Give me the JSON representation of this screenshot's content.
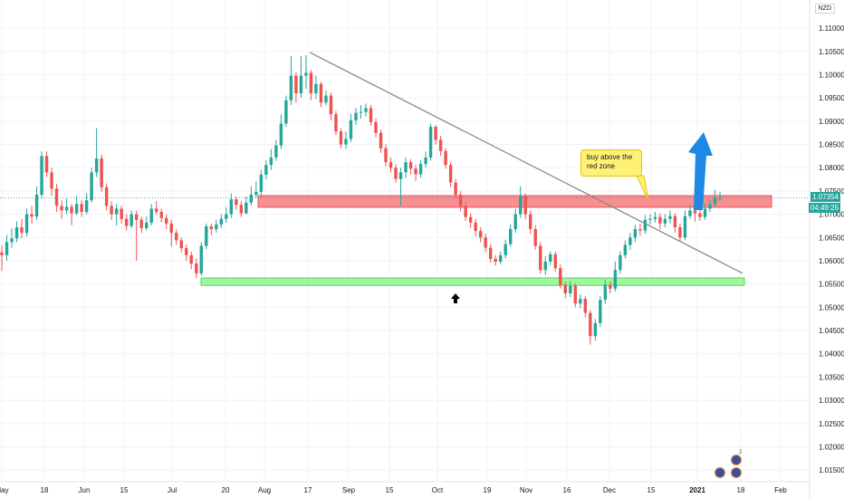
{
  "currency_label": "NZD",
  "last_price_label": "1.07354",
  "countdown_label": "04:49:25",
  "callout_text": "buy above the red zone",
  "event_count": "2",
  "colors": {
    "up": "#26a69a",
    "down": "#ef5350",
    "red_zone_fill": "#f77c80",
    "red_zone_stroke": "#e53935",
    "green_zone_fill": "#8ef78e",
    "green_zone_stroke": "#43c443",
    "trendline": "#8a8a8a",
    "arrow_blue": "#1e88e5",
    "last_price_bg": "#26a69a",
    "grid": "#f0f3fa"
  },
  "chart_data": {
    "type": "candlestick",
    "interval": "1D",
    "symbol_quote": "NZD",
    "y_ticks": [
      "1.11000",
      "1.10500",
      "1.10000",
      "1.09500",
      "1.09000",
      "1.08500",
      "1.08000",
      "1.07500",
      "1.07000",
      "1.06500",
      "1.06000",
      "1.05500",
      "1.05000",
      "1.04500",
      "1.04000",
      "1.03500",
      "1.03000",
      "1.02500",
      "1.02000",
      "1.01500"
    ],
    "y_range": [
      1.0125,
      1.1145
    ],
    "x_ticks": [
      "May",
      "18",
      "Jun",
      "15",
      "Jul",
      "20",
      "Aug",
      "17",
      "Sep",
      "15",
      "Oct",
      "19",
      "Nov",
      "16",
      "Dec",
      "15",
      "2021",
      "18",
      "Feb"
    ],
    "last_price": 1.07354,
    "zones": [
      {
        "name": "red zone",
        "from": 1.0715,
        "to": 1.074
      },
      {
        "name": "green zone",
        "from": 1.0547,
        "to": 1.0563
      }
    ],
    "trendline": {
      "start": 1.1048,
      "end": 1.0573
    },
    "annotations": [
      "buy above the red zone"
    ],
    "candles": [
      [
        1.0618,
        1.0612,
        1.0632,
        1.0578
      ],
      [
        1.0612,
        1.064,
        1.0655,
        1.06
      ],
      [
        1.064,
        1.0648,
        1.067,
        1.0628
      ],
      [
        1.0648,
        1.0672,
        1.0685,
        1.064
      ],
      [
        1.0672,
        1.066,
        1.069,
        1.0648
      ],
      [
        1.066,
        1.07,
        1.0712,
        1.0652
      ],
      [
        1.07,
        1.0695,
        1.0718,
        1.068
      ],
      [
        1.0695,
        1.0742,
        1.076,
        1.0688
      ],
      [
        1.0742,
        1.0825,
        1.0835,
        1.0735
      ],
      [
        1.0825,
        1.079,
        1.0835,
        1.078
      ],
      [
        1.079,
        1.0755,
        1.08,
        1.074
      ],
      [
        1.0755,
        1.0718,
        1.0765,
        1.0705
      ],
      [
        1.0718,
        1.0708,
        1.073,
        1.069
      ],
      [
        1.0708,
        1.0716,
        1.0734,
        1.07
      ],
      [
        1.0716,
        1.0702,
        1.0722,
        1.0676
      ],
      [
        1.0702,
        1.0722,
        1.074,
        1.0698
      ],
      [
        1.0722,
        1.0705,
        1.073,
        1.0694
      ],
      [
        1.0705,
        1.073,
        1.0745,
        1.07
      ],
      [
        1.073,
        1.079,
        1.08,
        1.0725
      ],
      [
        1.079,
        1.082,
        1.0885,
        1.078
      ],
      [
        1.082,
        1.0758,
        1.0828,
        1.0748
      ],
      [
        1.0758,
        1.0718,
        1.0766,
        1.0708
      ],
      [
        1.0718,
        1.07,
        1.0728,
        1.0688
      ],
      [
        1.07,
        1.0712,
        1.0722,
        1.0676
      ],
      [
        1.0712,
        1.069,
        1.0718,
        1.068
      ],
      [
        1.069,
        1.0675,
        1.07,
        1.0665
      ],
      [
        1.0675,
        1.07,
        1.0708,
        1.067
      ],
      [
        1.07,
        1.0688,
        1.0708,
        1.06
      ],
      [
        1.0688,
        1.067,
        1.0695,
        1.066
      ],
      [
        1.067,
        1.0682,
        1.0695,
        1.0665
      ],
      [
        1.0682,
        1.0712,
        1.0722,
        1.0676
      ],
      [
        1.0712,
        1.0705,
        1.0728,
        1.0698
      ],
      [
        1.0705,
        1.0692,
        1.0712,
        1.0682
      ],
      [
        1.0692,
        1.068,
        1.07,
        1.0668
      ],
      [
        1.068,
        1.066,
        1.0688,
        1.063
      ],
      [
        1.066,
        1.0644,
        1.0668,
        1.0634
      ],
      [
        1.0644,
        1.0627,
        1.065,
        1.0618
      ],
      [
        1.0627,
        1.0612,
        1.0635,
        1.06
      ],
      [
        1.0612,
        1.0594,
        1.062,
        1.0582
      ],
      [
        1.0594,
        1.0573,
        1.0605,
        1.0563
      ],
      [
        1.0573,
        1.0632,
        1.064,
        1.0568
      ],
      [
        1.0632,
        1.0674,
        1.068,
        1.0625
      ],
      [
        1.0674,
        1.0668,
        1.068,
        1.0655
      ],
      [
        1.0668,
        1.0678,
        1.0688,
        1.066
      ],
      [
        1.0678,
        1.069,
        1.07,
        1.067
      ],
      [
        1.069,
        1.07,
        1.0715,
        1.0682
      ],
      [
        1.07,
        1.0732,
        1.0745,
        1.0692
      ],
      [
        1.0732,
        1.072,
        1.0738,
        1.071
      ],
      [
        1.072,
        1.0702,
        1.0728,
        1.0694
      ],
      [
        1.0702,
        1.0725,
        1.0738,
        1.07
      ],
      [
        1.0725,
        1.0742,
        1.076,
        1.0718
      ],
      [
        1.0742,
        1.0748,
        1.077,
        1.0735
      ],
      [
        1.0748,
        1.0785,
        1.0795,
        1.074
      ],
      [
        1.0785,
        1.0806,
        1.0816,
        1.0775
      ],
      [
        1.0806,
        1.0822,
        1.084,
        1.0795
      ],
      [
        1.0822,
        1.0848,
        1.086,
        1.0815
      ],
      [
        1.0848,
        1.0895,
        1.0915,
        1.084
      ],
      [
        1.0895,
        1.0945,
        1.0955,
        1.0888
      ],
      [
        1.0945,
        1.0998,
        1.104,
        1.0935
      ],
      [
        1.0998,
        1.096,
        1.1005,
        1.094
      ],
      [
        1.096,
        1.0998,
        1.104,
        1.095
      ],
      [
        1.0998,
        1.1004,
        1.1042,
        1.097
      ],
      [
        1.1004,
        1.096,
        1.101,
        1.0945
      ],
      [
        1.096,
        1.098,
        1.0998,
        1.0948
      ],
      [
        1.098,
        1.094,
        1.0985,
        1.093
      ],
      [
        1.094,
        1.0955,
        1.0966,
        1.0935
      ],
      [
        1.0955,
        1.0915,
        1.0962,
        1.0902
      ],
      [
        1.0915,
        1.0878,
        1.0922,
        1.087
      ],
      [
        1.0878,
        1.085,
        1.0885,
        1.0842
      ],
      [
        1.085,
        1.0862,
        1.0878,
        1.084
      ],
      [
        1.0862,
        1.0902,
        1.0916,
        1.0855
      ],
      [
        1.0902,
        1.0918,
        1.0928,
        1.0892
      ],
      [
        1.0918,
        1.092,
        1.0935,
        1.0905
      ],
      [
        1.092,
        1.0928,
        1.0938,
        1.091
      ],
      [
        1.0928,
        1.0898,
        1.0935,
        1.089
      ],
      [
        1.0898,
        1.0875,
        1.0906,
        1.0865
      ],
      [
        1.0875,
        1.0842,
        1.0882,
        1.0832
      ],
      [
        1.0842,
        1.0812,
        1.085,
        1.0802
      ],
      [
        1.0812,
        1.08,
        1.0822,
        1.079
      ],
      [
        1.08,
        1.0776,
        1.0808,
        1.0768
      ],
      [
        1.0776,
        1.079,
        1.08,
        1.0718
      ],
      [
        1.079,
        1.0812,
        1.0822,
        1.0778
      ],
      [
        1.0812,
        1.0798,
        1.0818,
        1.0786
      ],
      [
        1.0798,
        1.0786,
        1.0806,
        1.0772
      ],
      [
        1.0786,
        1.0808,
        1.0816,
        1.0778
      ],
      [
        1.0808,
        1.0822,
        1.0835,
        1.08
      ],
      [
        1.0822,
        1.0888,
        1.0895,
        1.0815
      ],
      [
        1.0888,
        1.086,
        1.0892,
        1.085
      ],
      [
        1.086,
        1.0836,
        1.0868,
        1.0826
      ],
      [
        1.0836,
        1.0806,
        1.0842,
        1.0798
      ],
      [
        1.0806,
        1.0768,
        1.0812,
        1.0758
      ],
      [
        1.0768,
        1.0742,
        1.0776,
        1.0734
      ],
      [
        1.0742,
        1.0718,
        1.075,
        1.0706
      ],
      [
        1.0718,
        1.0694,
        1.0726,
        1.0686
      ],
      [
        1.0694,
        1.0682,
        1.0702,
        1.067
      ],
      [
        1.0682,
        1.0664,
        1.069,
        1.0652
      ],
      [
        1.0664,
        1.065,
        1.0672,
        1.064
      ],
      [
        1.065,
        1.0628,
        1.0658,
        1.0618
      ],
      [
        1.0628,
        1.0604,
        1.0636,
        1.0596
      ],
      [
        1.0604,
        1.0598,
        1.0612,
        1.059
      ],
      [
        1.0598,
        1.0612,
        1.062,
        1.0592
      ],
      [
        1.0612,
        1.0636,
        1.0645,
        1.0605
      ],
      [
        1.0636,
        1.0668,
        1.0678,
        1.063
      ],
      [
        1.0668,
        1.07,
        1.0712,
        1.066
      ],
      [
        1.07,
        1.0738,
        1.076,
        1.0692
      ],
      [
        1.0738,
        1.07,
        1.0745,
        1.069
      ],
      [
        1.07,
        1.0668,
        1.0708,
        1.0658
      ],
      [
        1.0668,
        1.0632,
        1.0676,
        1.0624
      ],
      [
        1.0632,
        1.058,
        1.064,
        1.0572
      ],
      [
        1.058,
        1.0598,
        1.061,
        1.057
      ],
      [
        1.0598,
        1.0614,
        1.062,
        1.059
      ],
      [
        1.0614,
        1.0584,
        1.062,
        1.0576
      ],
      [
        1.0584,
        1.0548,
        1.0592,
        1.054
      ],
      [
        1.0548,
        1.053,
        1.0555,
        1.052
      ],
      [
        1.053,
        1.0546,
        1.0556,
        1.0522
      ],
      [
        1.0546,
        1.0508,
        1.0552,
        1.05
      ],
      [
        1.0508,
        1.0518,
        1.0528,
        1.0498
      ],
      [
        1.0518,
        1.0488,
        1.0524,
        1.0478
      ],
      [
        1.0488,
        1.0438,
        1.0494,
        1.042
      ],
      [
        1.0438,
        1.0466,
        1.0475,
        1.0428
      ],
      [
        1.0466,
        1.0516,
        1.0524,
        1.0458
      ],
      [
        1.0516,
        1.0548,
        1.056,
        1.0508
      ],
      [
        1.0548,
        1.054,
        1.0556,
        1.053
      ],
      [
        1.054,
        1.058,
        1.0598,
        1.0534
      ],
      [
        1.058,
        1.0612,
        1.062,
        1.0572
      ],
      [
        1.0612,
        1.0634,
        1.0644,
        1.0605
      ],
      [
        1.0634,
        1.065,
        1.066,
        1.0624
      ],
      [
        1.065,
        1.0668,
        1.0678,
        1.064
      ],
      [
        1.0668,
        1.0665,
        1.068,
        1.0654
      ],
      [
        1.0665,
        1.0688,
        1.0698,
        1.0658
      ],
      [
        1.0688,
        1.069,
        1.07,
        1.0678
      ],
      [
        1.069,
        1.0694,
        1.0705,
        1.0682
      ],
      [
        1.0694,
        1.068,
        1.0702,
        1.0668
      ],
      [
        1.068,
        1.069,
        1.07,
        1.0672
      ],
      [
        1.069,
        1.0696,
        1.0708,
        1.068
      ],
      [
        1.0696,
        1.0672,
        1.0702,
        1.066
      ],
      [
        1.0672,
        1.065,
        1.068,
        1.0642
      ],
      [
        1.065,
        1.0696,
        1.0708,
        1.0645
      ],
      [
        1.0696,
        1.0708,
        1.072,
        1.069
      ],
      [
        1.0708,
        1.0702,
        1.0718,
        1.0684
      ],
      [
        1.0702,
        1.0694,
        1.071,
        1.0686
      ],
      [
        1.0694,
        1.0712,
        1.0724,
        1.0688
      ],
      [
        1.0712,
        1.0722,
        1.0732,
        1.0705
      ],
      [
        1.0722,
        1.0735,
        1.0752,
        1.0715
      ],
      [
        1.0735,
        1.0735,
        1.0748,
        1.0728
      ]
    ],
    "candle_x_range": [
      2,
      795
    ]
  }
}
